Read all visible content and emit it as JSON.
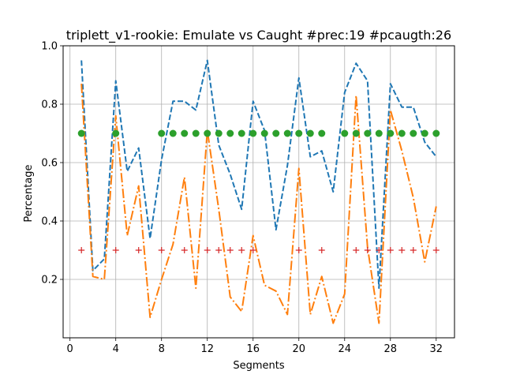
{
  "chart_data": {
    "type": "line",
    "title": "triplett_v1-rookie: Emulate vs Caught #prec:19 #pcaugth:26",
    "xlabel": "Segments",
    "ylabel": "Percentage",
    "xlim": [
      -0.6,
      33.6
    ],
    "ylim": [
      0.0,
      1.0
    ],
    "xticks": [
      0,
      4,
      8,
      12,
      16,
      20,
      24,
      28,
      32
    ],
    "yticks": [
      0.2,
      0.4,
      0.6,
      0.8,
      1.0
    ],
    "grid": true,
    "series": [
      {
        "style": "dashed",
        "color": "#1f77b4",
        "x": [
          1,
          2,
          3,
          4,
          5,
          6,
          7,
          8,
          9,
          10,
          11,
          12,
          13,
          14,
          15,
          16,
          17,
          18,
          19,
          20,
          21,
          22,
          23,
          24,
          25,
          26,
          27,
          28,
          29,
          30,
          31,
          32
        ],
        "values": [
          0.95,
          0.23,
          0.27,
          0.88,
          0.57,
          0.65,
          0.34,
          0.61,
          0.81,
          0.81,
          0.78,
          0.95,
          0.66,
          0.56,
          0.44,
          0.81,
          0.71,
          0.37,
          0.59,
          0.89,
          0.62,
          0.64,
          0.5,
          0.84,
          0.94,
          0.88,
          0.17,
          0.87,
          0.79,
          0.79,
          0.67,
          0.62
        ]
      },
      {
        "style": "dashdot",
        "color": "#ff7f0e",
        "x": [
          1,
          2,
          3,
          4,
          5,
          6,
          7,
          8,
          9,
          10,
          11,
          12,
          13,
          14,
          15,
          16,
          17,
          18,
          19,
          20,
          21,
          22,
          23,
          24,
          25,
          26,
          27,
          28,
          29,
          30,
          31,
          32
        ],
        "values": [
          0.87,
          0.21,
          0.2,
          0.76,
          0.35,
          0.52,
          0.07,
          0.2,
          0.32,
          0.55,
          0.17,
          0.71,
          0.44,
          0.14,
          0.09,
          0.35,
          0.18,
          0.16,
          0.08,
          0.58,
          0.08,
          0.21,
          0.05,
          0.15,
          0.83,
          0.31,
          0.05,
          0.78,
          0.64,
          0.48,
          0.26,
          0.45
        ]
      },
      {
        "style": "markers-circle",
        "color": "#2ca02c",
        "x": [
          1,
          4,
          8,
          9,
          10,
          11,
          12,
          13,
          14,
          15,
          16,
          17,
          18,
          19,
          20,
          21,
          22,
          24,
          25,
          26,
          27,
          28,
          29,
          30,
          31,
          32
        ],
        "values": [
          0.7,
          0.7,
          0.7,
          0.7,
          0.7,
          0.7,
          0.7,
          0.7,
          0.7,
          0.7,
          0.7,
          0.7,
          0.7,
          0.7,
          0.7,
          0.7,
          0.7,
          0.7,
          0.7,
          0.7,
          0.7,
          0.7,
          0.7,
          0.7,
          0.7,
          0.7
        ]
      },
      {
        "style": "markers-plus",
        "color": "#d62728",
        "x": [
          1,
          4,
          6,
          8,
          10,
          12,
          13,
          14,
          15,
          16,
          20,
          22,
          25,
          26,
          27,
          28,
          29,
          30,
          32
        ],
        "values": [
          0.3,
          0.3,
          0.3,
          0.3,
          0.3,
          0.3,
          0.3,
          0.3,
          0.3,
          0.3,
          0.3,
          0.3,
          0.3,
          0.3,
          0.3,
          0.3,
          0.3,
          0.3,
          0.3
        ]
      }
    ]
  }
}
